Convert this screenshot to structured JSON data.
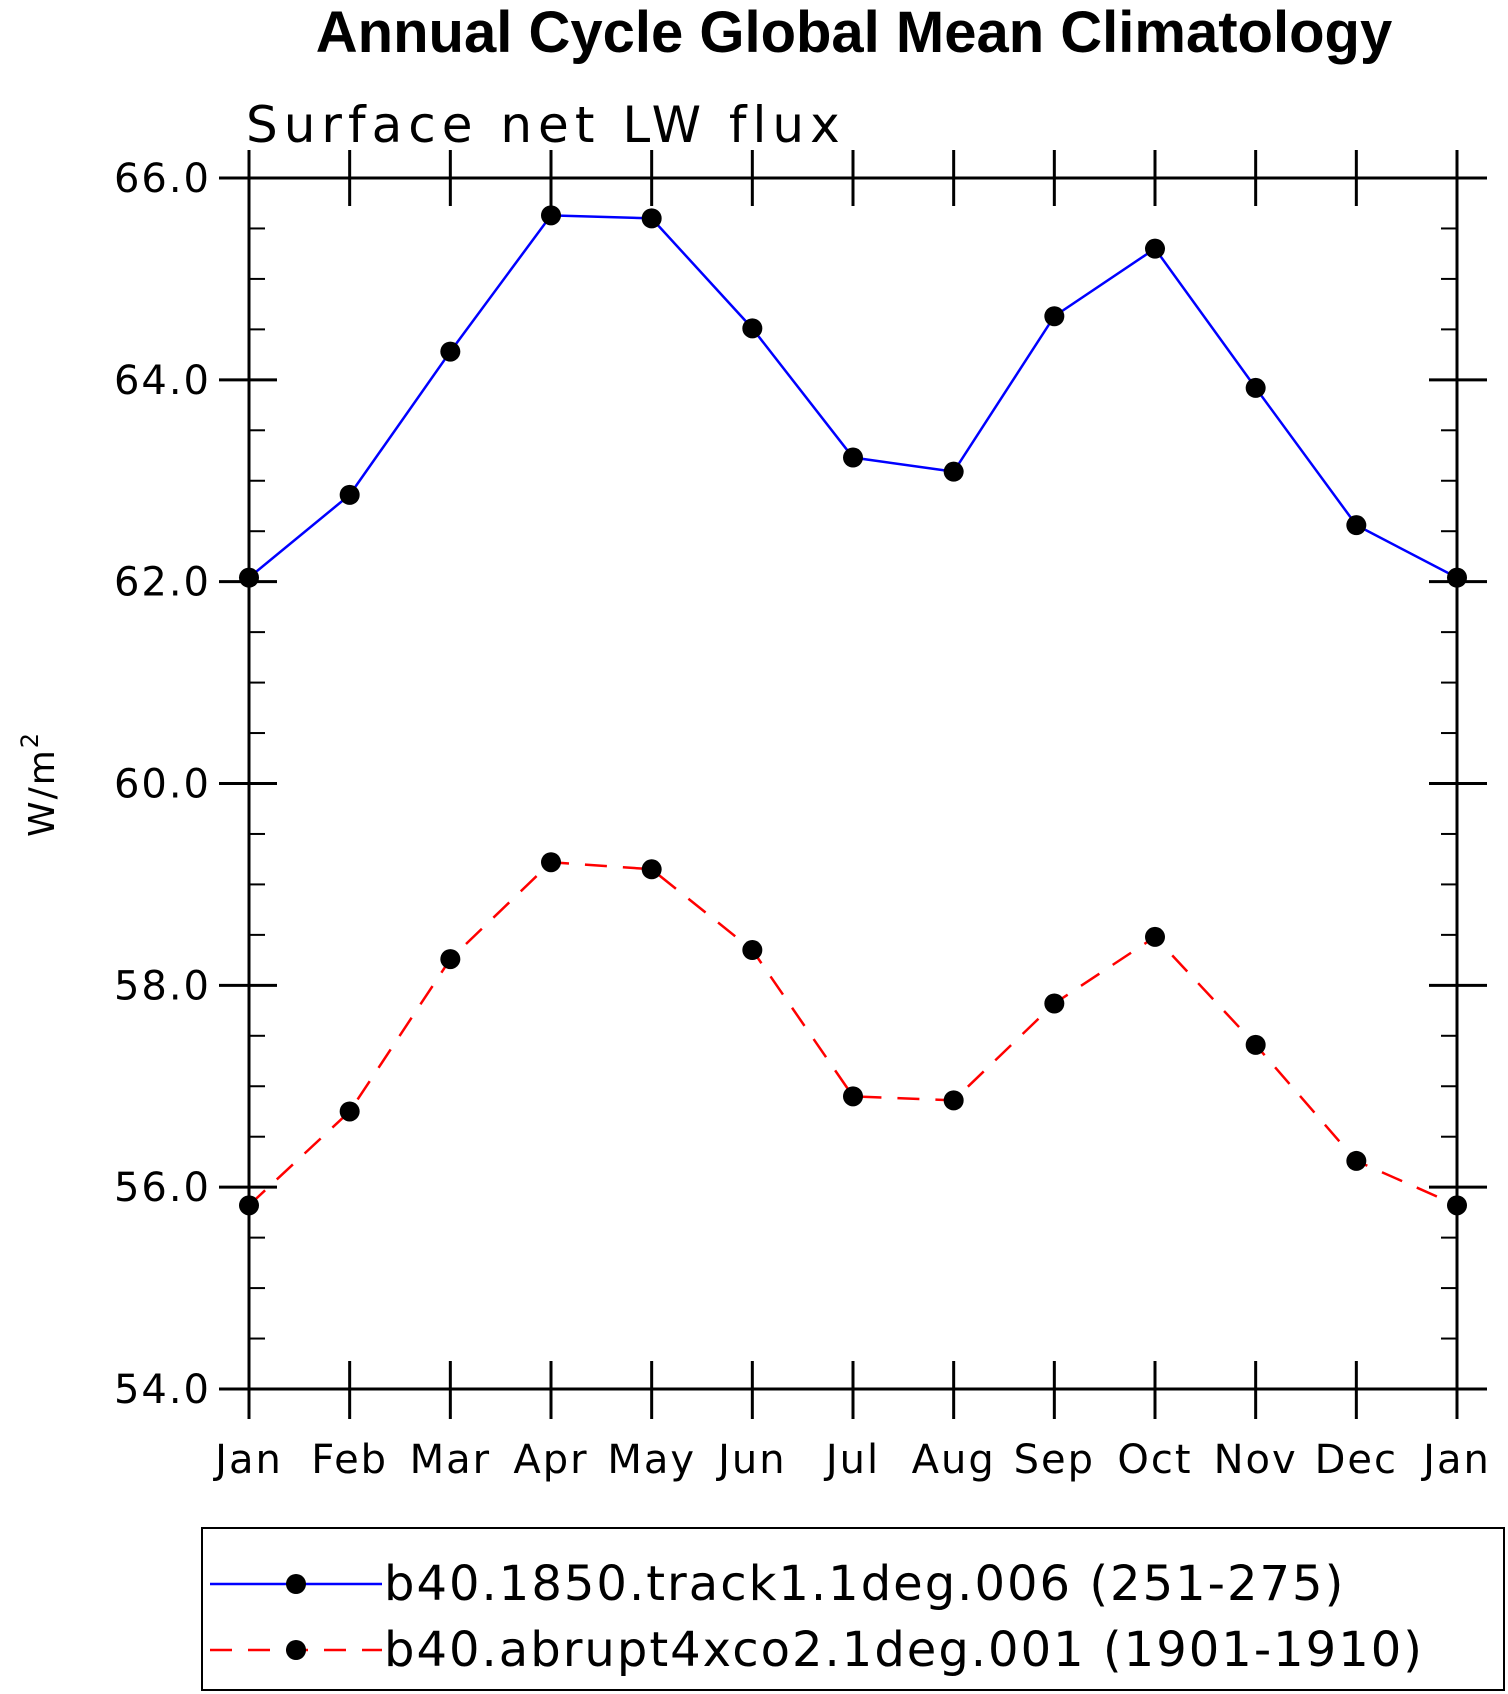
{
  "chart_data": {
    "type": "line",
    "title": "Annual Cycle Global Mean Climatology",
    "subtitle": "Surface net LW flux",
    "ylabel": "W/m",
    "ylabel_superscript": "2",
    "xlabel": "",
    "categories": [
      "Jan",
      "Feb",
      "Mar",
      "Apr",
      "May",
      "Jun",
      "Jul",
      "Aug",
      "Sep",
      "Oct",
      "Nov",
      "Dec",
      "Jan"
    ],
    "ylim": [
      54.0,
      66.0
    ],
    "yticks": [
      "54.0",
      "56.0",
      "58.0",
      "60.0",
      "62.0",
      "64.0",
      "66.0"
    ],
    "legend_position": "bottom",
    "series": [
      {
        "name": "b40.1850.track1.1deg.006 (251-275)",
        "color": "#0000ff",
        "dash": "solid",
        "values": [
          62.04,
          62.86,
          64.28,
          65.63,
          65.6,
          64.51,
          63.23,
          63.09,
          64.63,
          65.3,
          63.92,
          62.56,
          62.04
        ]
      },
      {
        "name": "b40.abrupt4xco2.1deg.001 (1901-1910)",
        "color": "#ff0000",
        "dash": "dashed",
        "values": [
          55.82,
          56.75,
          58.26,
          59.22,
          59.15,
          58.35,
          56.9,
          56.86,
          57.82,
          58.48,
          57.41,
          56.26,
          55.82
        ]
      }
    ]
  }
}
